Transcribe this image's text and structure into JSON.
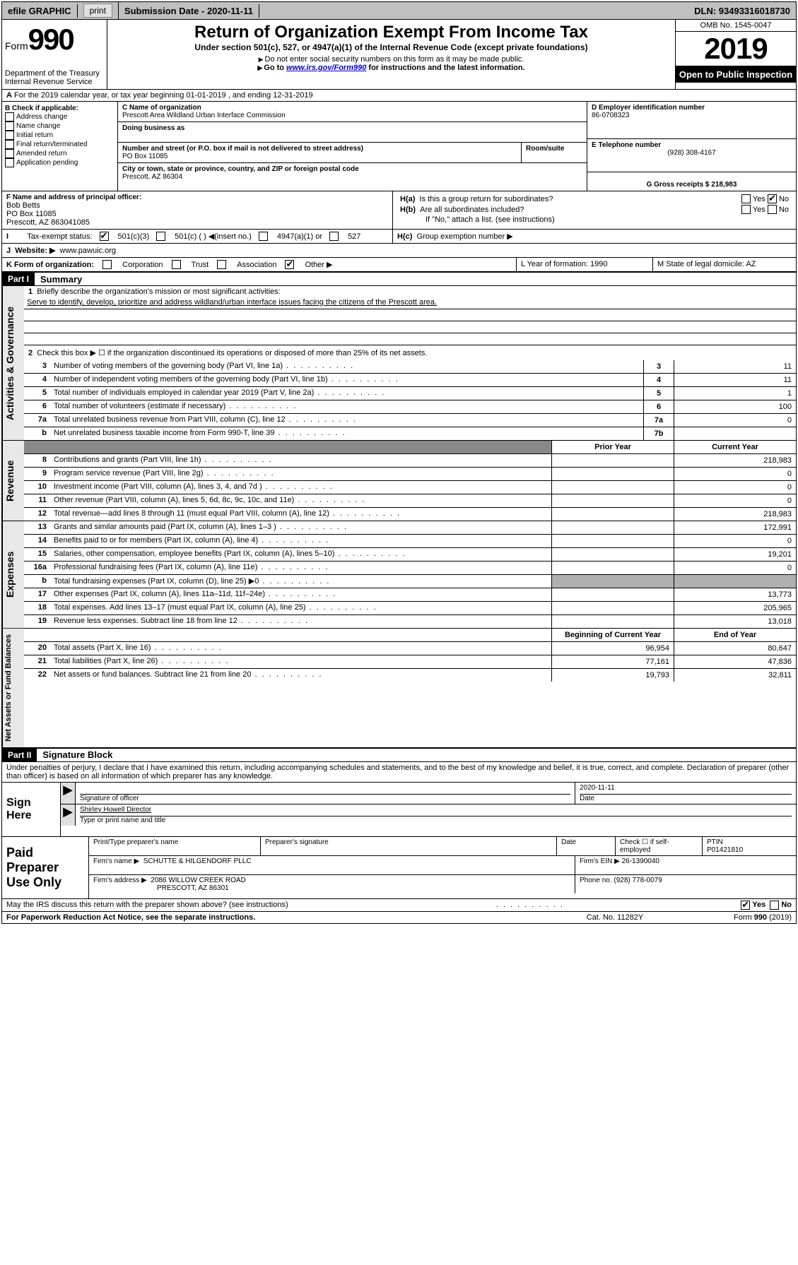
{
  "top": {
    "efile": "efile GRAPHIC",
    "print": "print",
    "sub_date_label": "Submission Date - 2020-11-11",
    "dln": "DLN: 93493316018730"
  },
  "header": {
    "form_label": "Form",
    "form_num": "990",
    "dept": "Department of the Treasury",
    "irs": "Internal Revenue Service",
    "title": "Return of Organization Exempt From Income Tax",
    "subtitle": "Under section 501(c), 527, or 4947(a)(1) of the Internal Revenue Code (except private foundations)",
    "note1": "Do not enter social security numbers on this form as it may be made public.",
    "note2_pre": "Go to ",
    "note2_link": "www.irs.gov/Form990",
    "note2_post": " for instructions and the latest information.",
    "omb": "OMB No. 1545-0047",
    "year": "2019",
    "inspection": "Open to Public Inspection"
  },
  "sectionA": "For the 2019 calendar year, or tax year beginning 01-01-2019   , and ending 12-31-2019",
  "colB": {
    "title": "B Check if applicable:",
    "opts": [
      "Address change",
      "Name change",
      "Initial return",
      "Final return/terminated",
      "Amended return",
      "Application pending"
    ]
  },
  "colC": {
    "name_label": "C Name of organization",
    "name": "Prescott Area Wildland Urban Interface Commission",
    "dba_label": "Doing business as",
    "addr_label": "Number and street (or P.O. box if mail is not delivered to street address)",
    "room_label": "Room/suite",
    "addr": "PO Box 11085",
    "city_label": "City or town, state or province, country, and ZIP or foreign postal code",
    "city": "Prescott, AZ  86304"
  },
  "colD": {
    "ein_label": "D Employer identification number",
    "ein": "86-0708323",
    "tel_label": "E Telephone number",
    "tel": "(928) 308-4167",
    "gross_label": "G Gross receipts $ 218,983"
  },
  "rowF": {
    "label": "F  Name and address of principal officer:",
    "name": "Bob Betts",
    "addr1": "PO Box 11085",
    "addr2": "Prescott, AZ  863041085"
  },
  "rowH": {
    "ha": "Is this a group return for subordinates?",
    "hb": "Are all subordinates included?",
    "hb_note": "If \"No,\" attach a list. (see instructions)",
    "hc": "Group exemption number ▶",
    "yes": "Yes",
    "no": "No"
  },
  "rowI": {
    "label": "Tax-exempt status:",
    "opt1": "501(c)(3)",
    "opt2": "501(c) (  ) ◀(insert no.)",
    "opt3": "4947(a)(1) or",
    "opt4": "527"
  },
  "rowJ": {
    "label": "Website: ▶",
    "val": "www.pawuic.org"
  },
  "rowK": {
    "label": "K Form of organization:",
    "opts": [
      "Corporation",
      "Trust",
      "Association",
      "Other ▶"
    ]
  },
  "rowL": {
    "label": "L Year of formation: 1990"
  },
  "rowM": {
    "label": "M State of legal domicile: AZ"
  },
  "part1": {
    "header": "Part I",
    "title": "Summary",
    "q1": "Briefly describe the organization's mission or most significant activities:",
    "mission": "Serve to identify, develop, prioritize and address wildland/urban interface issues facing the citizens of the Prescott area.",
    "q2": "Check this box ▶ ☐  if the organization discontinued its operations or disposed of more than 25% of its net assets.",
    "rows_gov": [
      {
        "n": "3",
        "d": "Number of voting members of the governing body (Part VI, line 1a)",
        "b": "3",
        "v": "11"
      },
      {
        "n": "4",
        "d": "Number of independent voting members of the governing body (Part VI, line 1b)",
        "b": "4",
        "v": "11"
      },
      {
        "n": "5",
        "d": "Total number of individuals employed in calendar year 2019 (Part V, line 2a)",
        "b": "5",
        "v": "1"
      },
      {
        "n": "6",
        "d": "Total number of volunteers (estimate if necessary)",
        "b": "6",
        "v": "100"
      },
      {
        "n": "7a",
        "d": "Total unrelated business revenue from Part VIII, column (C), line 12",
        "b": "7a",
        "v": "0"
      },
      {
        "n": "b",
        "d": "Net unrelated business taxable income from Form 990-T, line 39",
        "b": "7b",
        "v": ""
      }
    ],
    "prior_year": "Prior Year",
    "current_year": "Current Year",
    "rows_rev": [
      {
        "n": "8",
        "d": "Contributions and grants (Part VIII, line 1h)",
        "p": "",
        "c": "218,983"
      },
      {
        "n": "9",
        "d": "Program service revenue (Part VIII, line 2g)",
        "p": "",
        "c": "0"
      },
      {
        "n": "10",
        "d": "Investment income (Part VIII, column (A), lines 3, 4, and 7d )",
        "p": "",
        "c": "0"
      },
      {
        "n": "11",
        "d": "Other revenue (Part VIII, column (A), lines 5, 6d, 8c, 9c, 10c, and 11e)",
        "p": "",
        "c": "0"
      },
      {
        "n": "12",
        "d": "Total revenue—add lines 8 through 11 (must equal Part VIII, column (A), line 12)",
        "p": "",
        "c": "218,983"
      }
    ],
    "rows_exp": [
      {
        "n": "13",
        "d": "Grants and similar amounts paid (Part IX, column (A), lines 1–3 )",
        "p": "",
        "c": "172,991"
      },
      {
        "n": "14",
        "d": "Benefits paid to or for members (Part IX, column (A), line 4)",
        "p": "",
        "c": "0"
      },
      {
        "n": "15",
        "d": "Salaries, other compensation, employee benefits (Part IX, column (A), lines 5–10)",
        "p": "",
        "c": "19,201"
      },
      {
        "n": "16a",
        "d": "Professional fundraising fees (Part IX, column (A), line 11e)",
        "p": "",
        "c": "0"
      },
      {
        "n": "b",
        "d": "Total fundraising expenses (Part IX, column (D), line 25) ▶0",
        "p": "shaded",
        "c": "shaded"
      },
      {
        "n": "17",
        "d": "Other expenses (Part IX, column (A), lines 11a–11d, 11f–24e)",
        "p": "",
        "c": "13,773"
      },
      {
        "n": "18",
        "d": "Total expenses. Add lines 13–17 (must equal Part IX, column (A), line 25)",
        "p": "",
        "c": "205,965"
      },
      {
        "n": "19",
        "d": "Revenue less expenses. Subtract line 18 from line 12",
        "p": "",
        "c": "13,018"
      }
    ],
    "begin_year": "Beginning of Current Year",
    "end_year": "End of Year",
    "rows_net": [
      {
        "n": "20",
        "d": "Total assets (Part X, line 16)",
        "p": "96,954",
        "c": "80,647"
      },
      {
        "n": "21",
        "d": "Total liabilities (Part X, line 26)",
        "p": "77,161",
        "c": "47,836"
      },
      {
        "n": "22",
        "d": "Net assets or fund balances. Subtract line 21 from line 20",
        "p": "19,793",
        "c": "32,811"
      }
    ]
  },
  "part2": {
    "header": "Part II",
    "title": "Signature Block",
    "perjury": "Under penalties of perjury, I declare that I have examined this return, including accompanying schedules and statements, and to the best of my knowledge and belief, it is true, correct, and complete. Declaration of preparer (other than officer) is based on all information of which preparer has any knowledge.",
    "sign_here": "Sign Here",
    "sig_officer": "Signature of officer",
    "sig_date": "2020-11-11",
    "date_label": "Date",
    "officer_name": "Shirley Howell  Director",
    "type_name": "Type or print name and title"
  },
  "paid": {
    "label": "Paid Preparer Use Only",
    "col1": "Print/Type preparer's name",
    "col2": "Preparer's signature",
    "col3": "Date",
    "col4_check": "Check ☐ if self-employed",
    "col5_label": "PTIN",
    "col5_val": "P01421810",
    "firm_name_label": "Firm's name    ▶",
    "firm_name": "SCHUTTE & HILGENDORF PLLC",
    "firm_ein": "Firm's EIN ▶ 26-1390040",
    "firm_addr_label": "Firm's address ▶",
    "firm_addr1": "2086 WILLOW CREEK ROAD",
    "firm_addr2": "PRESCOTT, AZ  86301",
    "phone": "Phone no. (928) 778-0079"
  },
  "footer": {
    "discuss": "May the IRS discuss this return with the preparer shown above? (see instructions)",
    "yes": "Yes",
    "no": "No",
    "paperwork": "For Paperwork Reduction Act Notice, see the separate instructions.",
    "cat": "Cat. No. 11282Y",
    "form": "Form 990 (2019)"
  }
}
